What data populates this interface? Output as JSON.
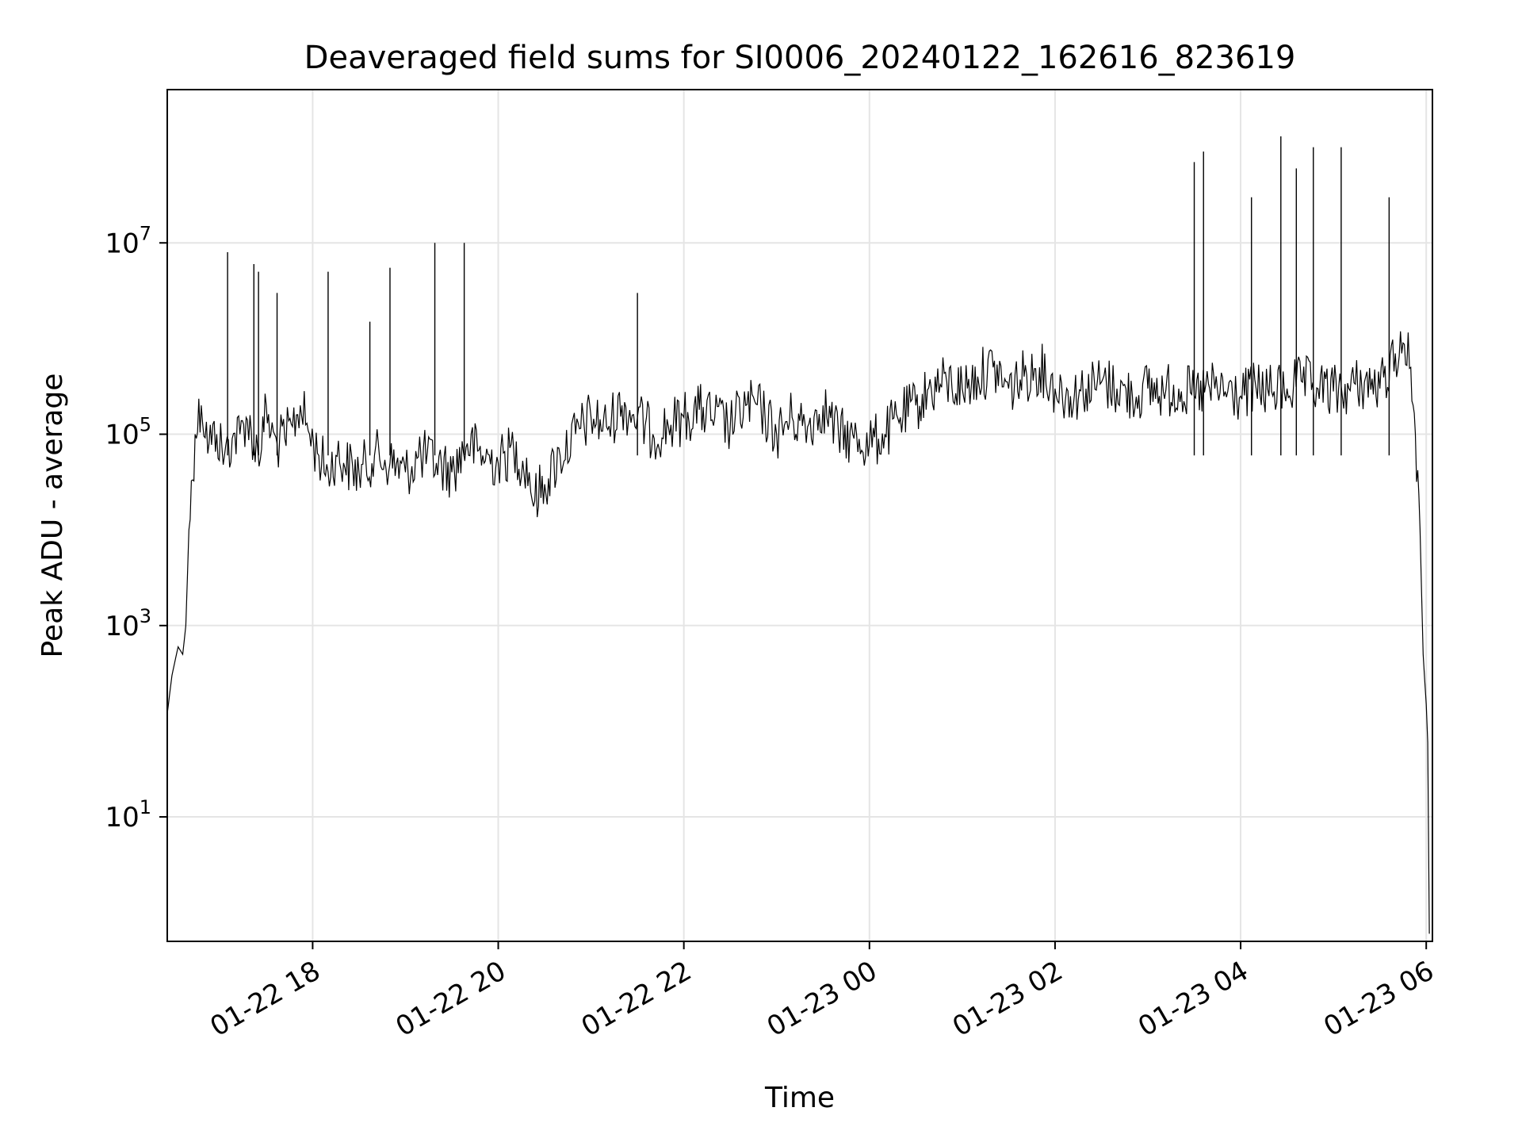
{
  "chart_data": {
    "type": "line",
    "title": "Deaveraged field sums for SI0006_20240122_162616_823619",
    "xlabel": "Time",
    "ylabel": "Peak ADU - average",
    "yscale": "log",
    "grid": true,
    "xlim": [
      "2024-01-22 16:26",
      "2024-01-23 06:04"
    ],
    "ylim": [
      0.5,
      400000000
    ],
    "x_ticks": [
      "01-22 18",
      "01-22 20",
      "01-22 22",
      "01-23 00",
      "01-23 02",
      "01-23 04",
      "01-23 06"
    ],
    "y_ticks": [
      {
        "base": "10",
        "exp": "1",
        "value": 10
      },
      {
        "base": "10",
        "exp": "3",
        "value": 1000
      },
      {
        "base": "10",
        "exp": "5",
        "value": 100000
      },
      {
        "base": "10",
        "exp": "7",
        "value": 10000000
      }
    ],
    "line_color": "#000000",
    "series": [
      {
        "x": [
          "2024-01-22 16:26",
          "2024-01-22 16:29",
          "2024-01-22 16:33",
          "2024-01-22 16:36",
          "2024-01-22 16:38",
          "2024-01-22 16:40",
          "2024-01-22 16:44",
          "2024-01-22 16:48",
          "2024-01-22 16:53",
          "2024-01-22 16:58",
          "2024-01-22 17:03",
          "2024-01-22 17:08",
          "2024-01-22 17:13",
          "2024-01-22 17:17",
          "2024-01-22 17:22",
          "2024-01-22 17:27",
          "2024-01-22 17:30",
          "2024-01-22 17:33",
          "2024-01-22 17:37",
          "2024-01-22 17:42",
          "2024-01-22 17:47",
          "2024-01-22 17:52",
          "2024-01-22 17:58",
          "2024-01-22 18:04",
          "2024-01-22 18:10",
          "2024-01-22 18:15",
          "2024-01-22 18:20",
          "2024-01-22 18:30",
          "2024-01-22 18:40",
          "2024-01-22 18:50",
          "2024-01-22 19:00",
          "2024-01-22 19:10",
          "2024-01-22 19:20",
          "2024-01-22 19:30",
          "2024-01-22 19:40",
          "2024-01-22 19:50",
          "2024-01-22 20:00",
          "2024-01-22 20:10",
          "2024-01-22 20:20",
          "2024-01-22 20:22",
          "2024-01-22 20:30",
          "2024-01-22 20:40",
          "2024-01-22 20:50",
          "2024-01-22 21:00",
          "2024-01-22 21:10",
          "2024-01-22 21:20",
          "2024-01-22 21:30",
          "2024-01-22 21:40",
          "2024-01-22 21:50",
          "2024-01-22 22:00",
          "2024-01-22 22:10",
          "2024-01-22 22:20",
          "2024-01-22 22:30",
          "2024-01-22 22:40",
          "2024-01-22 22:50",
          "2024-01-22 23:00",
          "2024-01-22 23:10",
          "2024-01-22 23:20",
          "2024-01-22 23:30",
          "2024-01-22 23:40",
          "2024-01-22 23:50",
          "2024-01-23 00:00",
          "2024-01-23 00:10",
          "2024-01-23 00:20",
          "2024-01-23 00:30",
          "2024-01-23 00:40",
          "2024-01-23 00:50",
          "2024-01-23 01:00",
          "2024-01-23 01:10",
          "2024-01-23 01:20",
          "2024-01-23 01:30",
          "2024-01-23 01:40",
          "2024-01-23 01:50",
          "2024-01-23 02:00",
          "2024-01-23 02:10",
          "2024-01-23 02:20",
          "2024-01-23 02:30",
          "2024-01-23 02:40",
          "2024-01-23 02:50",
          "2024-01-23 03:00",
          "2024-01-23 03:10",
          "2024-01-23 03:20",
          "2024-01-23 03:30",
          "2024-01-23 03:40",
          "2024-01-23 03:50",
          "2024-01-23 04:00",
          "2024-01-23 04:10",
          "2024-01-23 04:20",
          "2024-01-23 04:30",
          "2024-01-23 04:40",
          "2024-01-23 04:50",
          "2024-01-23 05:00",
          "2024-01-23 05:10",
          "2024-01-23 05:20",
          "2024-01-23 05:30",
          "2024-01-23 05:40",
          "2024-01-23 05:45",
          "2024-01-23 05:50",
          "2024-01-23 05:53",
          "2024-01-23 05:56",
          "2024-01-23 05:58",
          "2024-01-23 06:00",
          "2024-01-23 06:01",
          "2024-01-23 06:02"
        ],
        "y": [
          120,
          300,
          600,
          500,
          1000,
          10000,
          100000,
          200000,
          80000,
          100000,
          60000,
          90000,
          100000,
          150000,
          80000,
          70000,
          200000,
          100000,
          80000,
          90000,
          120000,
          200000,
          100000,
          60000,
          40000,
          60000,
          50000,
          40000,
          60000,
          50000,
          40000,
          60000,
          50000,
          40000,
          80000,
          60000,
          50000,
          70000,
          40000,
          20000,
          30000,
          60000,
          100000,
          150000,
          120000,
          200000,
          150000,
          100000,
          120000,
          150000,
          180000,
          150000,
          120000,
          200000,
          180000,
          100000,
          150000,
          120000,
          200000,
          100000,
          90000,
          80000,
          100000,
          150000,
          200000,
          300000,
          350000,
          300000,
          400000,
          500000,
          300000,
          400000,
          500000,
          300000,
          250000,
          300000,
          350000,
          300000,
          250000,
          300000,
          280000,
          300000,
          250000,
          300000,
          280000,
          250000,
          300000,
          280000,
          300000,
          350000,
          300000,
          280000,
          300000,
          350000,
          300000,
          700000,
          900000,
          500000,
          100000,
          10000,
          500,
          150,
          60,
          0.6
        ]
      }
    ],
    "spikes": [
      {
        "x": "2024-01-22 17:05",
        "y": 8000000
      },
      {
        "x": "2024-01-22 17:22",
        "y": 6000000
      },
      {
        "x": "2024-01-22 17:25",
        "y": 5000000
      },
      {
        "x": "2024-01-22 17:37",
        "y": 3000000
      },
      {
        "x": "2024-01-22 18:10",
        "y": 5000000
      },
      {
        "x": "2024-01-22 18:37",
        "y": 1500000
      },
      {
        "x": "2024-01-22 18:50",
        "y": 5500000
      },
      {
        "x": "2024-01-22 19:19",
        "y": 10000000
      },
      {
        "x": "2024-01-22 19:38",
        "y": 10000000
      },
      {
        "x": "2024-01-22 21:30",
        "y": 3000000
      },
      {
        "x": "2024-01-23 03:30",
        "y": 70000000
      },
      {
        "x": "2024-01-23 03:36",
        "y": 90000000
      },
      {
        "x": "2024-01-23 04:07",
        "y": 30000000
      },
      {
        "x": "2024-01-23 04:26",
        "y": 130000000
      },
      {
        "x": "2024-01-23 04:36",
        "y": 60000000
      },
      {
        "x": "2024-01-23 04:47",
        "y": 100000000
      },
      {
        "x": "2024-01-23 05:05",
        "y": 100000000
      },
      {
        "x": "2024-01-23 05:36",
        "y": 30000000
      }
    ]
  }
}
